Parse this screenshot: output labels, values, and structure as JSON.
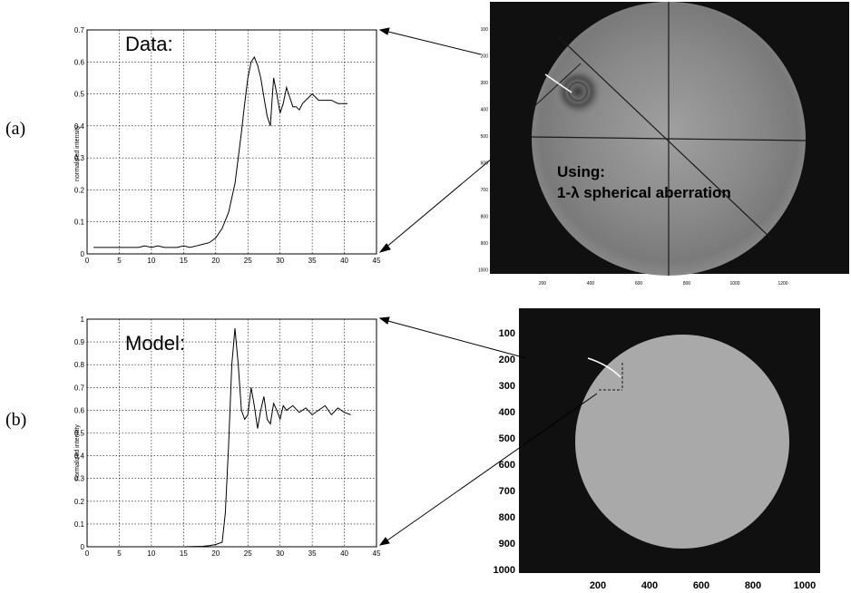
{
  "panels": [
    {
      "label": "(a)"
    },
    {
      "label": "(b)"
    }
  ],
  "chart_data": [
    {
      "type": "line",
      "annotation": "Data:",
      "xlabel": "",
      "ylabel": "normalized intensity",
      "xlim": [
        0,
        45
      ],
      "ylim": [
        0,
        0.7
      ],
      "xticks": [
        0,
        5,
        10,
        15,
        20,
        25,
        30,
        35,
        40,
        45
      ],
      "yticks": [
        0,
        0.1,
        0.2,
        0.3,
        0.4,
        0.5,
        0.6,
        0.7
      ],
      "grid": true,
      "series": [
        {
          "x": [
            1,
            5,
            8,
            9,
            10,
            11,
            12,
            14,
            15,
            16,
            17,
            18,
            19,
            20,
            21,
            22,
            23,
            23.5,
            24,
            24.5,
            25,
            25.5,
            26,
            26.5,
            27,
            27.5,
            28,
            28.5,
            29,
            29.5,
            30,
            30.5,
            31,
            31.5,
            32,
            32.5,
            33,
            33.5,
            34,
            34.5,
            35,
            35.5,
            36,
            37,
            38,
            39,
            40,
            40.5
          ],
          "y": [
            0.02,
            0.02,
            0.02,
            0.025,
            0.02,
            0.025,
            0.02,
            0.02,
            0.025,
            0.02,
            0.025,
            0.03,
            0.035,
            0.05,
            0.08,
            0.13,
            0.22,
            0.3,
            0.38,
            0.47,
            0.55,
            0.6,
            0.615,
            0.59,
            0.55,
            0.49,
            0.43,
            0.4,
            0.55,
            0.5,
            0.44,
            0.47,
            0.52,
            0.49,
            0.46,
            0.46,
            0.45,
            0.47,
            0.48,
            0.49,
            0.5,
            0.49,
            0.48,
            0.48,
            0.48,
            0.47,
            0.47,
            0.47
          ]
        }
      ]
    },
    {
      "type": "line",
      "annotation": "Model:",
      "xlabel": "",
      "ylabel": "normalized intensity",
      "xlim": [
        0,
        45
      ],
      "ylim": [
        0,
        1
      ],
      "xticks": [
        0,
        5,
        10,
        15,
        20,
        25,
        30,
        35,
        40,
        45
      ],
      "yticks": [
        0,
        0.1,
        0.2,
        0.3,
        0.4,
        0.5,
        0.6,
        0.7,
        0.8,
        0.9,
        1
      ],
      "grid": true,
      "series": [
        {
          "x": [
            0,
            5,
            10,
            15,
            18,
            19,
            20,
            21,
            21.5,
            22,
            22.5,
            23,
            23.5,
            24,
            24.5,
            25,
            25.5,
            26,
            26.5,
            27,
            27.5,
            28,
            28.5,
            29,
            29.5,
            30,
            30.5,
            31,
            32,
            33,
            34,
            35,
            36,
            37,
            38,
            39,
            40,
            41
          ],
          "y": [
            0,
            0,
            0,
            0,
            0.002,
            0.005,
            0.01,
            0.02,
            0.15,
            0.45,
            0.8,
            0.96,
            0.8,
            0.6,
            0.56,
            0.58,
            0.7,
            0.62,
            0.52,
            0.6,
            0.66,
            0.56,
            0.54,
            0.63,
            0.6,
            0.56,
            0.62,
            0.6,
            0.62,
            0.59,
            0.61,
            0.58,
            0.6,
            0.62,
            0.58,
            0.61,
            0.59,
            0.58
          ]
        }
      ]
    }
  ],
  "images": [
    {
      "overlay_lines": [
        "Using:",
        "1-λ spherical aberration"
      ],
      "yticks": [
        "100",
        "200",
        "300",
        "400",
        "500",
        "600",
        "700",
        "800",
        "900",
        "1000"
      ],
      "xticks": [
        "200",
        "400",
        "600",
        "800",
        "1000",
        "1200"
      ]
    },
    {
      "yticks": [
        "100",
        "200",
        "300",
        "400",
        "500",
        "600",
        "700",
        "800",
        "900",
        "1000"
      ],
      "xticks": [
        "200",
        "400",
        "600",
        "800",
        "1000"
      ]
    }
  ],
  "colors": {
    "line": "#000000",
    "grid": "#000000",
    "image_bg": "#101010",
    "disk_a": "#8a8a8a",
    "disk_b": "#a8a8a8"
  }
}
